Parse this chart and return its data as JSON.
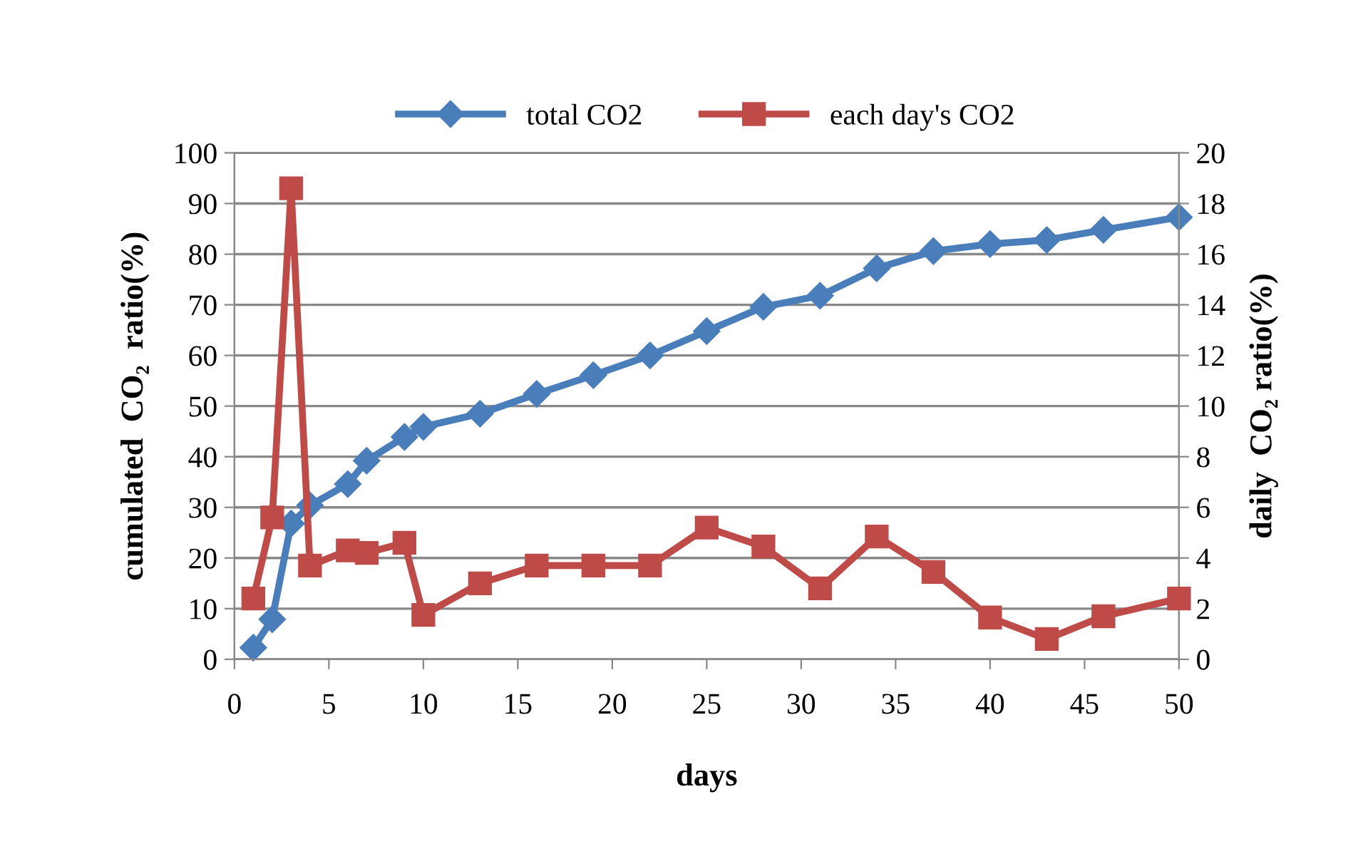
{
  "chart_data": {
    "type": "line",
    "x": [
      1,
      2,
      3,
      4,
      6,
      7,
      9,
      10,
      13,
      16,
      19,
      22,
      25,
      28,
      31,
      34,
      37,
      40,
      43,
      46,
      50
    ],
    "series": [
      {
        "name": "total CO2",
        "color": "#4a7ebb",
        "marker": "diamond",
        "values": [
          2.3,
          7.9,
          26.8,
          30.4,
          34.6,
          39.2,
          43.9,
          45.9,
          48.5,
          52.4,
          56.1,
          60.0,
          64.8,
          69.6,
          71.8,
          77.2,
          80.6,
          82.0,
          82.8,
          84.8,
          87.3
        ]
      },
      {
        "name": "each day's CO2",
        "color": "#be4b48",
        "marker": "square",
        "axis": "y2",
        "values": [
          2.4,
          5.6,
          18.6,
          3.7,
          4.3,
          4.2,
          4.6,
          1.75,
          3.0,
          3.7,
          3.7,
          3.7,
          5.2,
          4.45,
          2.8,
          4.85,
          3.45,
          1.65,
          0.8,
          1.7,
          2.4
        ]
      }
    ],
    "xlabel": "days",
    "ylabel": "cumulated  CO₂  ratio(%)",
    "y2label": "daily  CO₂ ratio(%)",
    "xlim": [
      0,
      50
    ],
    "xticks": [
      0,
      5,
      10,
      15,
      20,
      25,
      30,
      35,
      40,
      45,
      50
    ],
    "ylim": [
      0,
      100
    ],
    "yticks": [
      0,
      10,
      20,
      30,
      40,
      50,
      60,
      70,
      80,
      90,
      100
    ],
    "y2lim": [
      0,
      20
    ],
    "y2ticks": [
      0,
      2,
      4,
      6,
      8,
      10,
      12,
      14,
      16,
      18,
      20
    ],
    "grid": "y",
    "legend": "top"
  }
}
